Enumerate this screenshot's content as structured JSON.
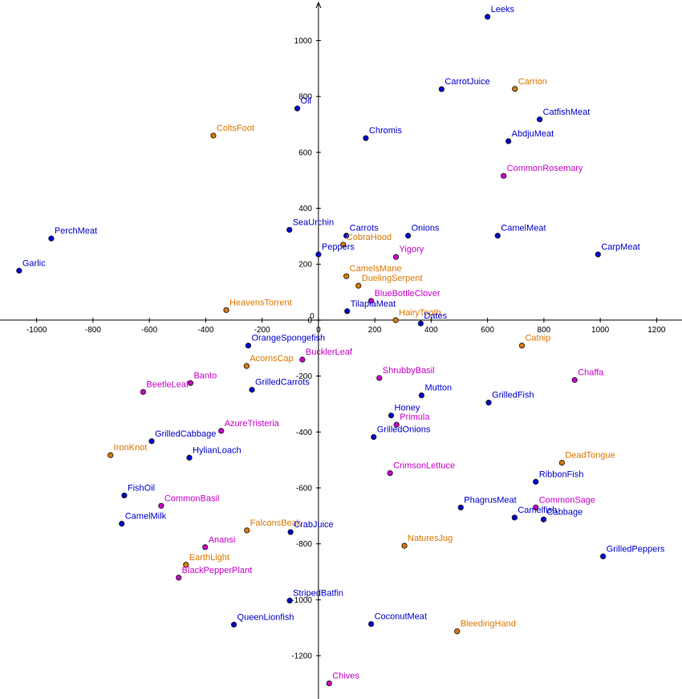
{
  "colors": {
    "blue": "#0000cc",
    "orange": "#dd7700",
    "magenta": "#cc00cc"
  },
  "chart_data": {
    "type": "scatter",
    "xlim": [
      -1130,
      1290
    ],
    "ylim": [
      -1355,
      1145
    ],
    "grid": false,
    "x_ticks": [
      -1000,
      -800,
      -600,
      -400,
      -200,
      0,
      200,
      400,
      600,
      800,
      1000,
      1200
    ],
    "y_ticks": [
      -1200,
      -1000,
      -800,
      -600,
      -400,
      -200,
      0,
      200,
      400,
      600,
      800,
      1000
    ],
    "points": [
      {
        "label": "Leeks",
        "x": 600,
        "y": 1085,
        "group": "blue"
      },
      {
        "label": "CarrotJuice",
        "x": 437,
        "y": 826,
        "group": "blue"
      },
      {
        "label": "Carrion",
        "x": 697,
        "y": 827,
        "group": "orange"
      },
      {
        "label": "Oil",
        "x": -75,
        "y": 757,
        "group": "blue"
      },
      {
        "label": "CatfishMeat",
        "x": 785,
        "y": 718,
        "group": "blue"
      },
      {
        "label": "ColtsFoot",
        "x": -373,
        "y": 660,
        "group": "orange"
      },
      {
        "label": "Chromis",
        "x": 168,
        "y": 651,
        "group": "blue"
      },
      {
        "label": "AbdjuMeat",
        "x": 674,
        "y": 640,
        "group": "blue"
      },
      {
        "label": "CommonRosemary",
        "x": 657,
        "y": 516,
        "group": "magenta"
      },
      {
        "label": "PerchMeat",
        "x": -948,
        "y": 292,
        "group": "blue"
      },
      {
        "label": "SeaUrchin",
        "x": -103,
        "y": 323,
        "group": "blue"
      },
      {
        "label": "Carrots",
        "x": 99,
        "y": 302,
        "group": "blue"
      },
      {
        "label": "Onions",
        "x": 318,
        "y": 302,
        "group": "blue"
      },
      {
        "label": "CamelMeat",
        "x": 636,
        "y": 302,
        "group": "blue"
      },
      {
        "label": "CarpMeat",
        "x": 992,
        "y": 235,
        "group": "blue"
      },
      {
        "label": "CobraHood",
        "x": 88,
        "y": 270,
        "group": "orange"
      },
      {
        "label": "Peppers",
        "x": 0,
        "y": 235,
        "group": "blue"
      },
      {
        "label": "Yigory",
        "x": 275,
        "y": 226,
        "group": "magenta"
      },
      {
        "label": "Garlic",
        "x": -1062,
        "y": 177,
        "group": "blue"
      },
      {
        "label": "CamelsMane",
        "x": 99,
        "y": 157,
        "group": "orange"
      },
      {
        "label": "DuelingSerpent",
        "x": 142,
        "y": 123,
        "group": "orange"
      },
      {
        "label": "BlueBottleClover",
        "x": 187,
        "y": 69,
        "group": "magenta"
      },
      {
        "label": "HeavensTorrent",
        "x": -327,
        "y": 36,
        "group": "orange"
      },
      {
        "label": "TilapiaMeat",
        "x": 102,
        "y": 32,
        "group": "blue"
      },
      {
        "label": "HairyTooth",
        "x": 274,
        "y": 0,
        "group": "orange"
      },
      {
        "label": "Dates",
        "x": 363,
        "y": -12,
        "group": "blue"
      },
      {
        "label": "Catnip",
        "x": 722,
        "y": -91,
        "group": "orange"
      },
      {
        "label": "OrangeSpongefish",
        "x": -249,
        "y": -91,
        "group": "blue"
      },
      {
        "label": "BucklerLeaf",
        "x": -57,
        "y": -141,
        "group": "magenta"
      },
      {
        "label": "AcornsCap",
        "x": -255,
        "y": -164,
        "group": "orange"
      },
      {
        "label": "Banto",
        "x": -454,
        "y": -225,
        "group": "magenta"
      },
      {
        "label": "BeetleLeaf",
        "x": -622,
        "y": -257,
        "group": "magenta"
      },
      {
        "label": "ShrubbyBasil",
        "x": 216,
        "y": -207,
        "group": "magenta"
      },
      {
        "label": "Chaffa",
        "x": 909,
        "y": -214,
        "group": "magenta"
      },
      {
        "label": "GrilledCarrots",
        "x": -236,
        "y": -249,
        "group": "blue"
      },
      {
        "label": "Mutton",
        "x": 366,
        "y": -269,
        "group": "blue"
      },
      {
        "label": "GrilledFish",
        "x": 604,
        "y": -295,
        "group": "blue"
      },
      {
        "label": "Honey",
        "x": 258,
        "y": -341,
        "group": "blue"
      },
      {
        "label": "Primula",
        "x": 277,
        "y": -374,
        "group": "magenta"
      },
      {
        "label": "AzureTristeria",
        "x": -345,
        "y": -396,
        "group": "magenta"
      },
      {
        "label": "GrilledCabbage",
        "x": -592,
        "y": -433,
        "group": "blue"
      },
      {
        "label": "GrilledOnions",
        "x": 196,
        "y": -418,
        "group": "blue"
      },
      {
        "label": "HylianLoach",
        "x": -458,
        "y": -492,
        "group": "blue"
      },
      {
        "label": "IronKnot",
        "x": -738,
        "y": -483,
        "group": "orange"
      },
      {
        "label": "DeadTongue",
        "x": 864,
        "y": -510,
        "group": "orange"
      },
      {
        "label": "CrimsonLettuce",
        "x": 254,
        "y": -547,
        "group": "magenta"
      },
      {
        "label": "RibbonFish",
        "x": 771,
        "y": -578,
        "group": "blue"
      },
      {
        "label": "FishOil",
        "x": -689,
        "y": -627,
        "group": "blue"
      },
      {
        "label": "CommonBasil",
        "x": -558,
        "y": -664,
        "group": "magenta"
      },
      {
        "label": "PhagrusMeat",
        "x": 505,
        "y": -670,
        "group": "blue"
      },
      {
        "label": "CommonSage",
        "x": 771,
        "y": -670,
        "group": "magenta"
      },
      {
        "label": "Camelfish",
        "x": 696,
        "y": -706,
        "group": "blue"
      },
      {
        "label": "Cabbage",
        "x": 799,
        "y": -713,
        "group": "blue"
      },
      {
        "label": "CamelMilk",
        "x": -698,
        "y": -728,
        "group": "blue"
      },
      {
        "label": "FalconsBeak",
        "x": -254,
        "y": -752,
        "group": "orange"
      },
      {
        "label": "CrabJuice",
        "x": -99,
        "y": -758,
        "group": "blue"
      },
      {
        "label": "NaturesJug",
        "x": 305,
        "y": -807,
        "group": "orange"
      },
      {
        "label": "Anansi",
        "x": -402,
        "y": -812,
        "group": "magenta"
      },
      {
        "label": "GrilledPeppers",
        "x": 1010,
        "y": -845,
        "group": "blue"
      },
      {
        "label": "EarthLight",
        "x": -470,
        "y": -875,
        "group": "orange"
      },
      {
        "label": "BlackPepperPlant",
        "x": -496,
        "y": -921,
        "group": "magenta"
      },
      {
        "label": "StripedBatfin",
        "x": -102,
        "y": -1003,
        "group": "blue"
      },
      {
        "label": "QueenLionfish",
        "x": -300,
        "y": -1089,
        "group": "blue"
      },
      {
        "label": "CoconutMeat",
        "x": 187,
        "y": -1087,
        "group": "blue"
      },
      {
        "label": "BleedingHand",
        "x": 492,
        "y": -1113,
        "group": "orange"
      },
      {
        "label": "Chives",
        "x": 38,
        "y": -1299,
        "group": "magenta"
      }
    ]
  }
}
